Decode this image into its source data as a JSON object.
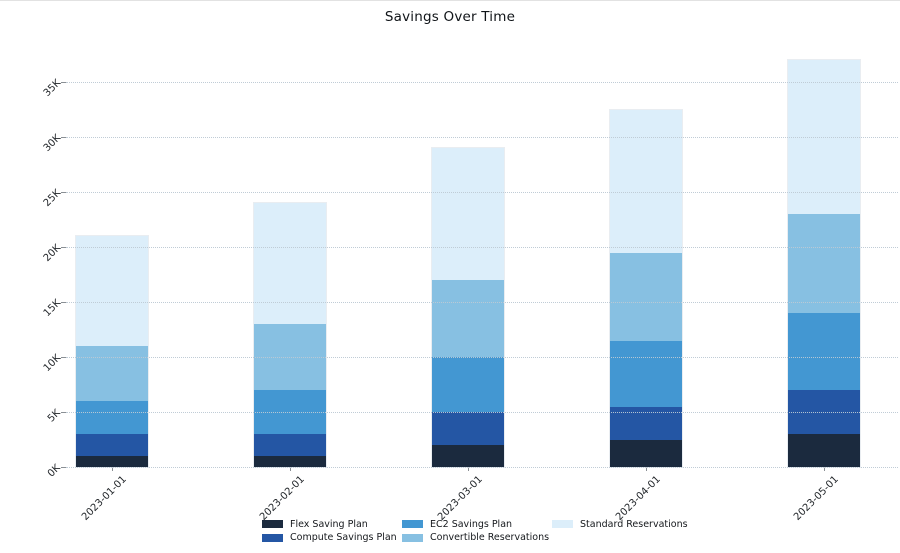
{
  "title": "Savings Over Time",
  "chart_data": {
    "type": "bar",
    "stacked": true,
    "title": "Savings Over Time",
    "categories": [
      "2023-01-01",
      "2023-02-01",
      "2023-03-01",
      "2023-04-01",
      "2023-05-01"
    ],
    "series": [
      {
        "name": "Flex Saving Plan",
        "color": "#1b2a3e",
        "values": [
          1000,
          1000,
          2000,
          2500,
          3000
        ]
      },
      {
        "name": "Compute Savings Plan",
        "color": "#2456a4",
        "values": [
          2000,
          2000,
          3000,
          3000,
          4000
        ]
      },
      {
        "name": "EC2 Savings Plan",
        "color": "#4397d2",
        "values": [
          3000,
          4000,
          5000,
          6000,
          7000
        ]
      },
      {
        "name": "Convertible Reservations",
        "color": "#87c0e2",
        "values": [
          5000,
          6000,
          7000,
          8000,
          9000
        ]
      },
      {
        "name": "Standard Reservations",
        "color": "#dceefa",
        "values": [
          10000,
          11000,
          12000,
          13000,
          14000
        ]
      }
    ],
    "totals": [
      21000,
      24000,
      29000,
      32500,
      37000
    ],
    "xlabel": "",
    "ylabel": "",
    "ylim": [
      0,
      37500
    ],
    "ytick_values": [
      0,
      5000,
      10000,
      15000,
      20000,
      25000,
      30000,
      35000
    ],
    "ytick_labels": [
      "0K",
      "5K",
      "10K",
      "15K",
      "20K",
      "25K",
      "30K",
      "35K"
    ],
    "tick_rotation": 45,
    "grid": "horizontal-dotted",
    "gridline_color": "#c5d0da",
    "legend_position": "bottom"
  }
}
